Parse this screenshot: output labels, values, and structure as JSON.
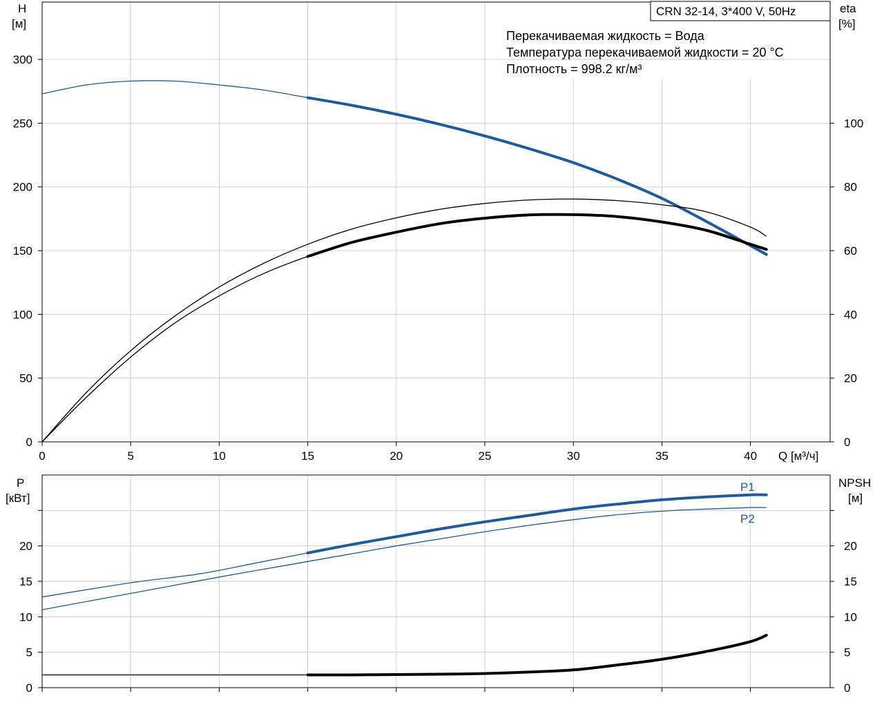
{
  "chart_data": [
    {
      "type": "line",
      "title": "CRN 32-14, 3*400 V, 50Hz",
      "annotations": [
        "Перекачиваемая жидкость = Вода",
        "Температура перекачиваемой жидкости = 20 °C",
        "Плотность = 998.2 кг/м³"
      ],
      "xlabel": "Q [м³/ч]",
      "ylabel_left": [
        "H",
        "[м]"
      ],
      "ylabel_right": [
        "eta",
        "[%]"
      ],
      "xlim": [
        0,
        44.5
      ],
      "ylim_left": [
        0,
        345
      ],
      "ylim_right": [
        0,
        138
      ],
      "x_ticks": [
        0,
        5,
        10,
        15,
        20,
        25,
        30,
        35,
        40
      ],
      "y_ticks_left": [
        0,
        50,
        100,
        150,
        200,
        250,
        300
      ],
      "y_ticks_right": [
        0,
        20,
        40,
        60,
        80,
        100
      ],
      "grid": true,
      "series": [
        {
          "axis": "left",
          "color": "#1f5a9a",
          "x": [
            0,
            2.5,
            5,
            7.5,
            10,
            12.5,
            15,
            17.5,
            20,
            22.5,
            25,
            27.5,
            30,
            32.5,
            35,
            37.5,
            40,
            40.9
          ],
          "values": [
            273,
            280,
            283,
            283,
            280,
            276,
            270,
            264,
            257,
            249,
            240,
            230,
            219,
            206,
            191,
            173,
            154,
            147
          ],
          "heavy_from": 15
        },
        {
          "axis": "right",
          "color": "#000000",
          "x": [
            0,
            2.5,
            5,
            7.5,
            10,
            12.5,
            15,
            17.5,
            20,
            22.5,
            25,
            27.5,
            30,
            32.5,
            35,
            37.5,
            40,
            40.9
          ],
          "values": [
            0,
            15.5,
            28.6,
            39.5,
            48.6,
            56.0,
            62.0,
            66.8,
            70.3,
            73.0,
            74.8,
            75.9,
            76.2,
            75.7,
            74.4,
            72.2,
            67.4,
            64.5
          ],
          "heavy_from": null
        },
        {
          "axis": "right",
          "color": "#000000",
          "x": [
            0,
            2.5,
            5,
            7.5,
            10,
            12.5,
            15,
            17.5,
            20,
            22.5,
            25,
            27.5,
            30,
            32.5,
            35,
            37.5,
            40,
            40.9
          ],
          "values": [
            0,
            14.0,
            26.6,
            37.3,
            45.8,
            52.8,
            58.2,
            62.6,
            65.8,
            68.5,
            70.2,
            71.2,
            71.3,
            70.7,
            69.0,
            66.4,
            62.0,
            60.4
          ],
          "heavy_from": 15
        }
      ]
    },
    {
      "type": "line",
      "xlim": [
        0,
        44.5
      ],
      "ylabel_left": [
        "P",
        "[кВт]"
      ],
      "ylabel_right": [
        "NPSH",
        "[м]"
      ],
      "ylim_left": [
        0,
        30
      ],
      "ylim_right": [
        0,
        30
      ],
      "y_ticks_left": [
        0,
        5,
        10,
        15,
        20
      ],
      "y_ticks_right": [
        0,
        5,
        10,
        15,
        20
      ],
      "extra_tick_marks": [
        25
      ],
      "grid": true,
      "series": [
        {
          "name": "P1",
          "axis": "left",
          "color": "#1f5a9a",
          "x": [
            0,
            5,
            9,
            12.5,
            15,
            17.5,
            20,
            22.5,
            25,
            27.5,
            30,
            32.5,
            35,
            37.5,
            40,
            40.9
          ],
          "values": [
            12.8,
            14.8,
            16.1,
            17.8,
            19.0,
            20.2,
            21.3,
            22.4,
            23.4,
            24.3,
            25.2,
            25.9,
            26.5,
            26.9,
            27.2,
            27.2
          ],
          "heavy_from": 15
        },
        {
          "name": "P2",
          "axis": "left",
          "color": "#1f5a9a",
          "x": [
            0,
            5,
            10,
            15,
            17.5,
            20,
            22.5,
            25,
            27.5,
            30,
            32.5,
            35,
            37.5,
            40,
            40.9
          ],
          "values": [
            11.0,
            13.3,
            15.6,
            17.8,
            18.9,
            20.0,
            21.0,
            22.0,
            22.9,
            23.7,
            24.4,
            24.9,
            25.2,
            25.4,
            25.4
          ],
          "heavy_from": null
        },
        {
          "axis": "right",
          "color": "#000000",
          "x": [
            0,
            5,
            10,
            15,
            17.5,
            20,
            22.5,
            25,
            27.5,
            30,
            32.5,
            35,
            37.5,
            40,
            40.9
          ],
          "values": [
            1.8,
            1.8,
            1.8,
            1.8,
            1.8,
            1.85,
            1.9,
            2.0,
            2.2,
            2.5,
            3.2,
            4.0,
            5.1,
            6.5,
            7.4
          ],
          "heavy_from": 15
        }
      ]
    }
  ]
}
